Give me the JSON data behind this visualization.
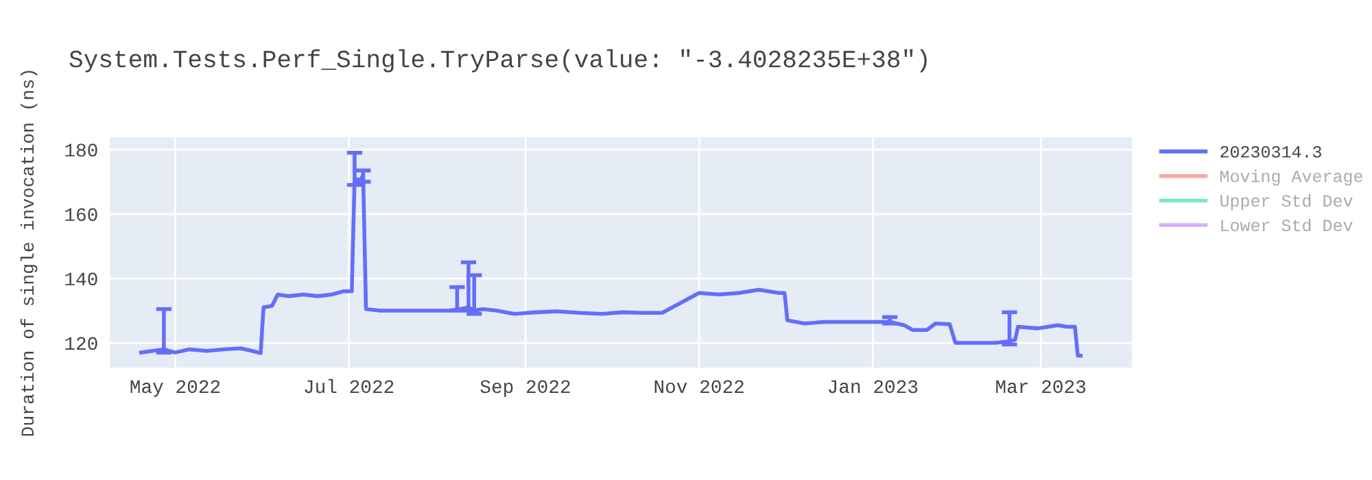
{
  "chart_data": {
    "type": "line",
    "title": "System.Tests.Perf_Single.TryParse(value: \"-3.4028235E+38\")",
    "ylabel": "Duration of single invocation (ns)",
    "xlim": [
      "2022-04-08",
      "2023-04-02"
    ],
    "ylim": [
      112.3,
      183.8
    ],
    "xticks": [
      {
        "value": "2022-05-01",
        "label": "May 2022"
      },
      {
        "value": "2022-07-01",
        "label": "Jul 2022"
      },
      {
        "value": "2022-09-01",
        "label": "Sep 2022"
      },
      {
        "value": "2022-11-01",
        "label": "Nov 2022"
      },
      {
        "value": "2023-01-01",
        "label": "Jan 2023"
      },
      {
        "value": "2023-03-01",
        "label": "Mar 2023"
      }
    ],
    "yticks": [
      120,
      140,
      160,
      180
    ],
    "grid": true,
    "legend": "top right",
    "x": [
      "2022-04-19",
      "2022-04-23",
      "2022-04-27",
      "2022-05-01",
      "2022-05-06",
      "2022-05-12",
      "2022-05-18",
      "2022-05-24",
      "2022-05-28",
      "2022-05-31",
      "2022-06-01",
      "2022-06-04",
      "2022-06-06",
      "2022-06-10",
      "2022-06-15",
      "2022-06-20",
      "2022-06-25",
      "2022-06-29",
      "2022-07-02",
      "2022-07-03",
      "2022-07-05",
      "2022-07-06",
      "2022-07-07",
      "2022-07-12",
      "2022-07-20",
      "2022-07-28",
      "2022-08-05",
      "2022-08-08",
      "2022-08-12",
      "2022-08-14",
      "2022-08-17",
      "2022-08-22",
      "2022-08-28",
      "2022-09-05",
      "2022-09-12",
      "2022-09-20",
      "2022-09-28",
      "2022-10-05",
      "2022-10-12",
      "2022-10-19",
      "2022-11-01",
      "2022-11-08",
      "2022-11-15",
      "2022-11-22",
      "2022-11-29",
      "2022-12-01",
      "2022-12-02",
      "2022-12-08",
      "2022-12-15",
      "2022-12-25",
      "2023-01-01",
      "2023-01-07",
      "2023-01-12",
      "2023-01-15",
      "2023-01-20",
      "2023-01-23",
      "2023-01-28",
      "2023-01-30",
      "2023-02-06",
      "2023-02-13",
      "2023-02-18",
      "2023-02-20",
      "2023-02-21",
      "2023-02-28",
      "2023-03-07",
      "2023-03-10",
      "2023-03-13",
      "2023-03-14",
      "2023-03-15"
    ],
    "series": [
      {
        "name": "20230314.3",
        "color": "#636efa",
        "values": [
          117,
          117.5,
          118,
          117,
          118,
          117.5,
          118,
          118.3,
          117.5,
          116.8,
          131,
          131.5,
          135,
          134.5,
          135,
          134.5,
          135,
          136,
          136,
          171,
          170.5,
          172,
          130.5,
          130,
          130,
          130,
          130,
          130.3,
          131,
          130,
          130.5,
          130,
          129,
          129.5,
          129.8,
          129.3,
          129,
          129.5,
          129.3,
          129.3,
          135.5,
          135,
          135.5,
          136.5,
          135.5,
          135.5,
          127,
          126,
          126.5,
          126.5,
          126.5,
          126.5,
          125.5,
          124,
          124,
          126,
          125.8,
          120,
          120,
          120,
          120.5,
          121,
          125,
          124.5,
          125.5,
          125,
          125,
          116,
          116
        ],
        "errors": [
          null,
          null,
          [
            117,
            130.5
          ],
          null,
          null,
          null,
          null,
          null,
          null,
          null,
          null,
          null,
          null,
          null,
          null,
          null,
          null,
          null,
          null,
          [
            169,
            179
          ],
          null,
          [
            170,
            173.5
          ],
          null,
          null,
          null,
          null,
          null,
          [
            130,
            137.3
          ],
          [
            130,
            145
          ],
          [
            129,
            141
          ],
          null,
          null,
          null,
          null,
          null,
          null,
          null,
          null,
          null,
          null,
          null,
          null,
          null,
          null,
          null,
          null,
          null,
          null,
          null,
          null,
          null,
          [
            126,
            128
          ],
          null,
          null,
          null,
          null,
          null,
          null,
          null,
          null,
          [
            119.5,
            129.5
          ],
          null,
          null,
          null,
          null,
          null,
          null,
          null,
          null
        ]
      },
      {
        "name": "Moving Average",
        "color": "#f7aa9d",
        "values": [
          null,
          null,
          null,
          null,
          null,
          null,
          null,
          null,
          null,
          null,
          null,
          null,
          null,
          null,
          null,
          null,
          null,
          null,
          null,
          null,
          null,
          null,
          null,
          null,
          null,
          null,
          null,
          null,
          null,
          null,
          null,
          null,
          null,
          null,
          null,
          null,
          null,
          null,
          null,
          null,
          null,
          null,
          null,
          null,
          null,
          null,
          null,
          null,
          null,
          null,
          null,
          null,
          null,
          null,
          null,
          null,
          null,
          null,
          null,
          null,
          null,
          null,
          null,
          null,
          null,
          null,
          null,
          null,
          null
        ]
      },
      {
        "name": "Upper Std Dev",
        "color": "#80e6cb",
        "values": [
          null,
          null,
          null,
          null,
          null,
          null,
          null,
          null,
          null,
          null,
          null,
          null,
          null,
          null,
          null,
          null,
          null,
          null,
          null,
          null,
          null,
          null,
          null,
          null,
          null,
          null,
          null,
          null,
          null,
          null,
          null,
          null,
          null,
          null,
          null,
          null,
          null,
          null,
          null,
          null,
          null,
          null,
          null,
          null,
          null,
          null,
          null,
          null,
          null,
          null,
          null,
          null,
          null,
          null,
          null,
          null,
          null,
          null,
          null,
          null,
          null,
          null,
          null,
          null,
          null,
          null,
          null,
          null,
          null
        ]
      },
      {
        "name": "Lower Std Dev",
        "color": "#d5b1fd",
        "values": [
          null,
          null,
          null,
          null,
          null,
          null,
          null,
          null,
          null,
          null,
          null,
          null,
          null,
          null,
          null,
          null,
          null,
          null,
          null,
          null,
          null,
          null,
          null,
          null,
          null,
          null,
          null,
          null,
          null,
          null,
          null,
          null,
          null,
          null,
          null,
          null,
          null,
          null,
          null,
          null,
          null,
          null,
          null,
          null,
          null,
          null,
          null,
          null,
          null,
          null,
          null,
          null,
          null,
          null,
          null,
          null,
          null,
          null,
          null,
          null,
          null,
          null,
          null,
          null,
          null,
          null,
          null,
          null,
          null
        ]
      }
    ]
  }
}
